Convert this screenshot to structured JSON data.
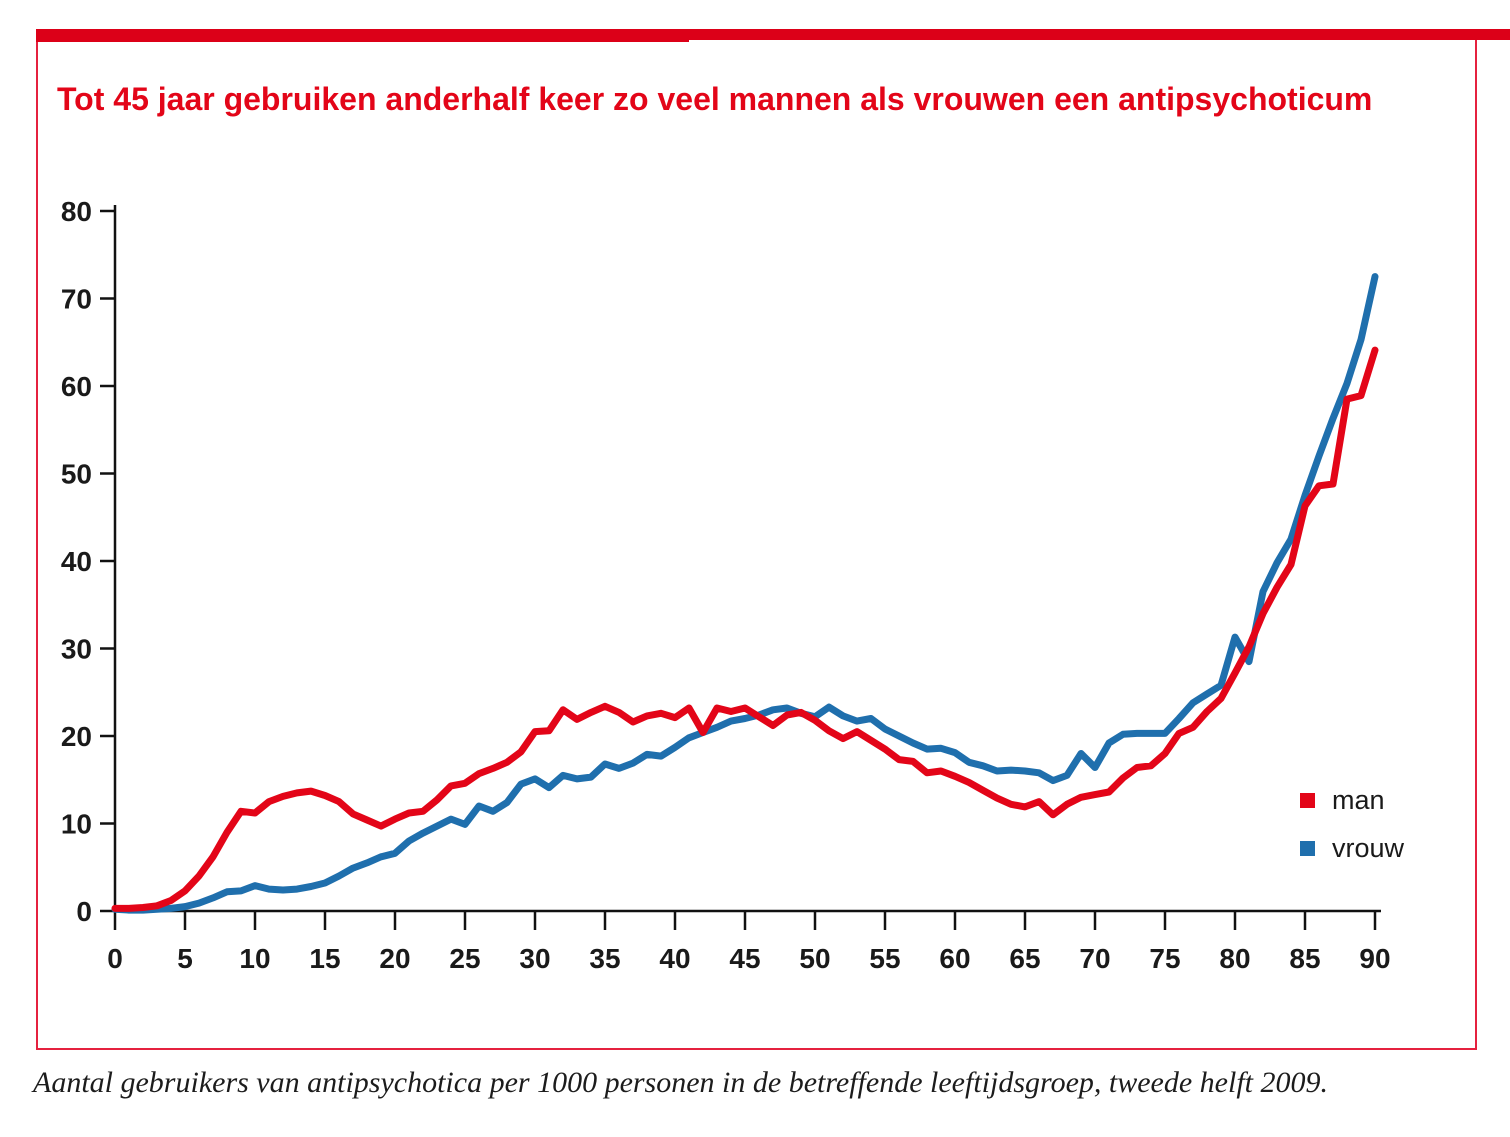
{
  "header": {
    "title": "Tot 45 jaar gebruiken anderhalf keer zo veel mannen als vrouwen een antipsychoticum"
  },
  "caption": "Aantal gebruikers van antipsychotica per 1000 personen in de betreffende leeftijdsgroep, tweede helft 2009.",
  "legend": {
    "items": [
      {
        "label": "man",
        "color": "#e30518"
      },
      {
        "label": "vrouw",
        "color": "#1f6fad"
      }
    ]
  },
  "colors": {
    "accent_bar": "#dc0018",
    "panel_border": "#e5213f",
    "title_red": "#e30518",
    "line_man": "#e30518",
    "line_vrouw": "#1f6fad",
    "axis": "#111111",
    "tick_text": "#1a1a1a"
  },
  "chart_data": {
    "type": "line",
    "title": "Tot 45 jaar gebruiken anderhalf keer zo veel mannen als vrouwen een antipsychoticum",
    "xlabel": "",
    "ylabel": "",
    "xlim": [
      0,
      90
    ],
    "ylim": [
      0,
      80
    ],
    "grid": false,
    "legend_position": "right-bottom",
    "x_ticks": [
      0,
      5,
      10,
      15,
      20,
      25,
      30,
      35,
      40,
      45,
      50,
      55,
      60,
      65,
      70,
      75,
      80,
      85,
      90
    ],
    "y_ticks": [
      0,
      10,
      20,
      30,
      40,
      50,
      60,
      70,
      80
    ],
    "x": [
      0,
      1,
      2,
      3,
      4,
      5,
      6,
      7,
      8,
      9,
      10,
      11,
      12,
      13,
      14,
      15,
      16,
      17,
      18,
      19,
      20,
      21,
      22,
      23,
      24,
      25,
      26,
      27,
      28,
      29,
      30,
      31,
      32,
      33,
      34,
      35,
      36,
      37,
      38,
      39,
      40,
      41,
      42,
      43,
      44,
      45,
      46,
      47,
      48,
      49,
      50,
      51,
      52,
      53,
      54,
      55,
      56,
      57,
      58,
      59,
      60,
      61,
      62,
      63,
      64,
      65,
      66,
      67,
      68,
      69,
      70,
      71,
      72,
      73,
      74,
      75,
      76,
      77,
      78,
      79,
      80,
      81,
      82,
      83,
      84,
      85,
      86,
      87,
      88,
      89,
      90
    ],
    "series": [
      {
        "name": "man",
        "color": "#e30518",
        "values": [
          0.3,
          0.3,
          0.4,
          0.6,
          1.2,
          2.3,
          4.0,
          6.2,
          9.0,
          11.4,
          11.2,
          12.5,
          13.1,
          13.5,
          13.7,
          13.2,
          12.5,
          11.1,
          10.4,
          9.7,
          10.5,
          11.2,
          11.4,
          12.7,
          14.3,
          14.6,
          15.7,
          16.3,
          17.0,
          18.2,
          20.5,
          20.6,
          23.0,
          21.9,
          22.7,
          23.4,
          22.7,
          21.6,
          22.3,
          22.6,
          22.1,
          23.2,
          20.4,
          23.2,
          22.8,
          23.2,
          22.2,
          21.2,
          22.4,
          22.7,
          21.8,
          20.6,
          19.7,
          20.5,
          19.5,
          18.5,
          17.3,
          17.1,
          15.8,
          16.0,
          15.4,
          14.7,
          13.8,
          12.9,
          12.2,
          11.9,
          12.5,
          11.0,
          12.2,
          13.0,
          13.3,
          13.6,
          15.2,
          16.4,
          16.6,
          18.0,
          20.3,
          21.0,
          22.8,
          24.3,
          27.2,
          30.2,
          34.0,
          37.0,
          39.6,
          46.3,
          48.6,
          48.8,
          58.5,
          58.9,
          64.1
        ]
      },
      {
        "name": "vrouw",
        "color": "#1f6fad",
        "values": [
          0.2,
          0.1,
          0.1,
          0.2,
          0.3,
          0.5,
          0.9,
          1.5,
          2.2,
          2.3,
          2.9,
          2.5,
          2.4,
          2.5,
          2.8,
          3.2,
          4.0,
          4.9,
          5.5,
          6.2,
          6.6,
          8.0,
          8.9,
          9.7,
          10.5,
          9.9,
          12.0,
          11.4,
          12.4,
          14.5,
          15.1,
          14.1,
          15.5,
          15.1,
          15.3,
          16.8,
          16.3,
          16.9,
          17.9,
          17.7,
          18.7,
          19.8,
          20.4,
          21.0,
          21.7,
          22.0,
          22.4,
          23.0,
          23.2,
          22.6,
          22.2,
          23.3,
          22.3,
          21.7,
          22.0,
          20.8,
          20.0,
          19.2,
          18.5,
          18.6,
          18.1,
          17.0,
          16.6,
          16.0,
          16.1,
          16.0,
          15.8,
          14.9,
          15.5,
          18.0,
          16.4,
          19.2,
          20.2,
          20.3,
          20.3,
          20.3,
          22.0,
          23.8,
          24.8,
          25.8,
          31.3,
          28.5,
          36.5,
          39.8,
          42.5,
          47.5,
          52.0,
          56.3,
          60.3,
          65.3,
          72.5
        ]
      }
    ]
  }
}
